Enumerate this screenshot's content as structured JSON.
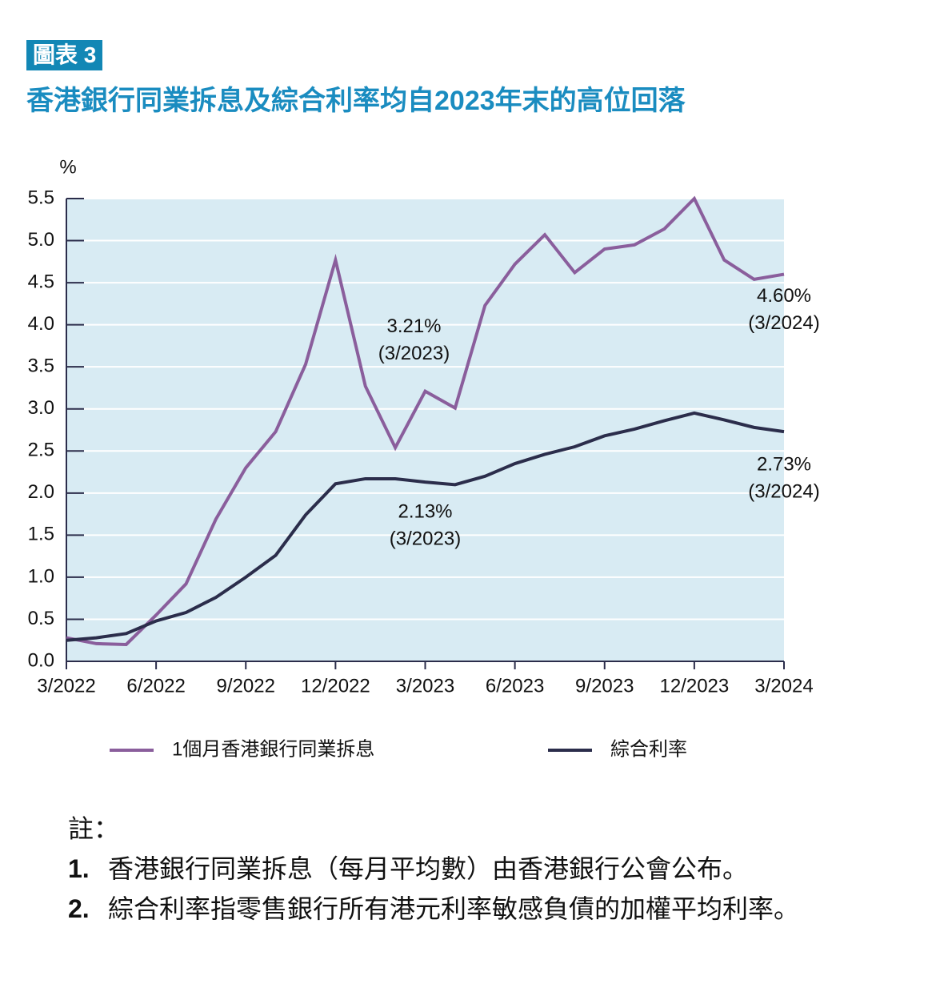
{
  "chart_data": {
    "type": "line",
    "tag": "圖表 3",
    "title": "香港銀行同業拆息及綜合利率均自2023年末的高位回落",
    "y_label": "%",
    "categories": [
      "3/2022",
      null,
      null,
      "6/2022",
      null,
      null,
      "9/2022",
      null,
      null,
      "12/2022",
      null,
      null,
      "3/2023",
      null,
      null,
      "6/2023",
      null,
      null,
      "9/2023",
      null,
      null,
      "12/2023",
      null,
      null,
      "3/2024"
    ],
    "ylim": [
      0,
      5.5
    ],
    "yticks": [
      {
        "value": 0,
        "label": "0.0"
      },
      0.5,
      {
        "value": 1,
        "label": "1.0"
      },
      1.5,
      {
        "value": 2,
        "label": "2.0"
      },
      2.5,
      {
        "value": 3,
        "label": "3.0"
      },
      3.5,
      {
        "value": 4,
        "label": "4.0"
      },
      4.5,
      {
        "value": 5,
        "label": "5.0"
      },
      5.5
    ],
    "grid": true,
    "legend": "bottom",
    "series": [
      {
        "name": "1個月香港銀行同業拆息",
        "color": "#8a5e9c",
        "values": [
          0.28,
          0.21,
          0.2,
          0.55,
          0.92,
          1.69,
          2.3,
          2.73,
          3.53,
          4.77,
          3.27,
          2.54,
          3.21,
          3.01,
          4.23,
          4.72,
          5.07,
          4.62,
          4.9,
          4.95,
          5.14,
          5.5,
          4.77,
          4.54,
          4.6
        ],
        "value_labels": [
          null,
          null,
          null,
          null,
          null,
          null,
          null,
          null,
          null,
          null,
          null,
          null,
          "3.21%",
          null,
          null,
          null,
          null,
          null,
          null,
          null,
          null,
          null,
          null,
          null,
          "4.60%"
        ],
        "label_dates": [
          null,
          null,
          null,
          null,
          null,
          null,
          null,
          null,
          null,
          null,
          null,
          null,
          "(3/2023)",
          null,
          null,
          null,
          null,
          null,
          null,
          null,
          null,
          null,
          null,
          null,
          "(3/2024)"
        ]
      },
      {
        "name": "綜合利率",
        "color": "#2b2d4b",
        "values": [
          0.25,
          0.28,
          0.33,
          0.48,
          0.58,
          0.76,
          1.0,
          1.26,
          1.74,
          2.11,
          2.17,
          2.17,
          2.13,
          2.1,
          2.2,
          2.35,
          2.46,
          2.55,
          2.68,
          2.76,
          2.86,
          2.95,
          2.87,
          2.78,
          2.73
        ],
        "value_labels": [
          null,
          null,
          null,
          null,
          null,
          null,
          null,
          null,
          null,
          null,
          null,
          null,
          "2.13%",
          null,
          null,
          null,
          null,
          null,
          null,
          null,
          null,
          null,
          null,
          null,
          "2.73%"
        ],
        "label_dates": [
          null,
          null,
          null,
          null,
          null,
          null,
          null,
          null,
          null,
          null,
          null,
          null,
          "(3/2023)",
          null,
          null,
          null,
          null,
          null,
          null,
          null,
          null,
          null,
          null,
          null,
          "(3/2024)"
        ]
      }
    ]
  },
  "notes": {
    "heading": "註：",
    "items": [
      {
        "number": "1.",
        "text": "香港銀行同業拆息（每月平均數）由香港銀行公會公布。"
      },
      {
        "number": "2.",
        "text": "綜合利率指零售銀行所有港元利率敏感負債的加權平均利率。"
      }
    ]
  }
}
